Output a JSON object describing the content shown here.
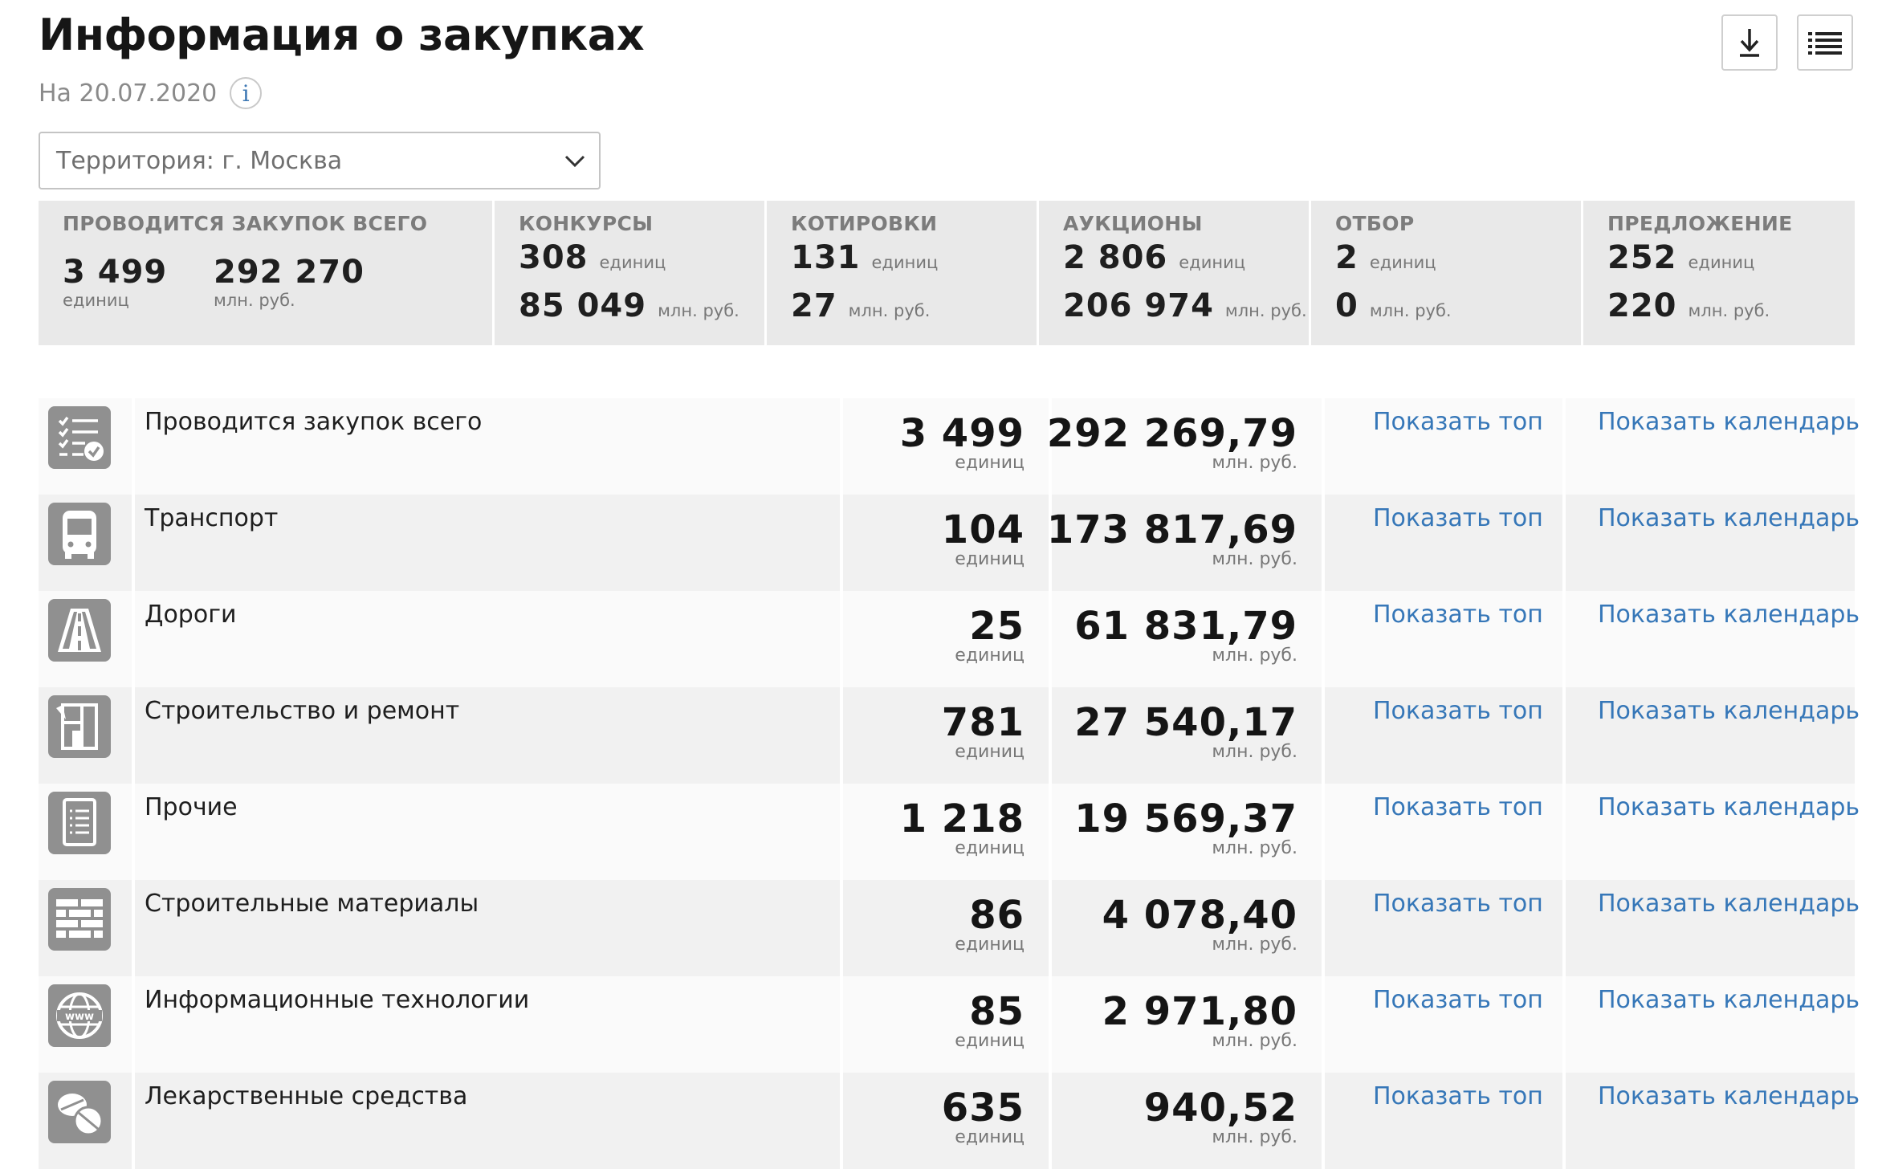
{
  "header": {
    "title": "Информация о закупках",
    "date": "На 20.07.2020",
    "info_icon": "info-icon",
    "download_icon": "download-icon",
    "list_icon": "list-view-icon"
  },
  "filter": {
    "territory": "Территория: г. Москва"
  },
  "summary": {
    "total": {
      "label": "ПРОВОДИТСЯ ЗАКУПОК ВСЕГО",
      "count": "3 499",
      "count_unit": "единиц",
      "sum": "292 270",
      "sum_unit": "млн. руб."
    },
    "types": [
      {
        "label": "КОНКУРСЫ",
        "count": "308",
        "count_unit": "единиц",
        "sum": "85 049",
        "sum_unit": "млн. руб."
      },
      {
        "label": "КОТИРОВКИ",
        "count": "131",
        "count_unit": "единиц",
        "sum": "27",
        "sum_unit": "млн. руб."
      },
      {
        "label": "АУКЦИОНЫ",
        "count": "2 806",
        "count_unit": "единиц",
        "sum": "206 974",
        "sum_unit": "млн. руб."
      },
      {
        "label": "ОТБОР",
        "count": "2",
        "count_unit": "единиц",
        "sum": "0",
        "sum_unit": "млн. руб."
      },
      {
        "label": "ПРЕДЛОЖЕНИЕ",
        "count": "252",
        "count_unit": "единиц",
        "sum": "220",
        "sum_unit": "млн. руб."
      }
    ]
  },
  "rows": [
    {
      "icon": "checklist-icon",
      "name": "Проводится закупок всего",
      "count": "3 499",
      "count_unit": "единиц",
      "sum": "292 269,79",
      "sum_unit": "млн. руб.",
      "link_top": "Показать топ",
      "link_calendar": "Показать календарь"
    },
    {
      "icon": "bus-icon",
      "name": "Транспорт",
      "count": "104",
      "count_unit": "единиц",
      "sum": "173 817,69",
      "sum_unit": "млн. руб.",
      "link_top": "Показать топ",
      "link_calendar": "Показать календарь"
    },
    {
      "icon": "road-icon",
      "name": "Дороги",
      "count": "25",
      "count_unit": "единиц",
      "sum": "61 831,79",
      "sum_unit": "млн. руб.",
      "link_top": "Показать топ",
      "link_calendar": "Показать календарь"
    },
    {
      "icon": "building-plan-icon",
      "name": "Строительство и ремонт",
      "count": "781",
      "count_unit": "единиц",
      "sum": "27 540,17",
      "sum_unit": "млн. руб.",
      "link_top": "Показать топ",
      "link_calendar": "Показать календарь"
    },
    {
      "icon": "document-icon",
      "name": "Прочие",
      "count": "1 218",
      "count_unit": "единиц",
      "sum": "19 569,37",
      "sum_unit": "млн. руб.",
      "link_top": "Показать топ",
      "link_calendar": "Показать календарь"
    },
    {
      "icon": "brick-wall-icon",
      "name": "Строительные материалы",
      "count": "86",
      "count_unit": "единиц",
      "sum": "4 078,40",
      "sum_unit": "млн. руб.",
      "link_top": "Показать топ",
      "link_calendar": "Показать календарь"
    },
    {
      "icon": "www-globe-icon",
      "name": "Информационные технологии",
      "count": "85",
      "count_unit": "единиц",
      "sum": "2 971,80",
      "sum_unit": "млн. руб.",
      "link_top": "Показать топ",
      "link_calendar": "Показать календарь"
    },
    {
      "icon": "pills-icon",
      "name": "Лекарственные средства",
      "count": "635",
      "count_unit": "единиц",
      "sum": "940,52",
      "sum_unit": "млн. руб.",
      "link_top": "Показать топ",
      "link_calendar": "Показать календарь"
    }
  ]
}
